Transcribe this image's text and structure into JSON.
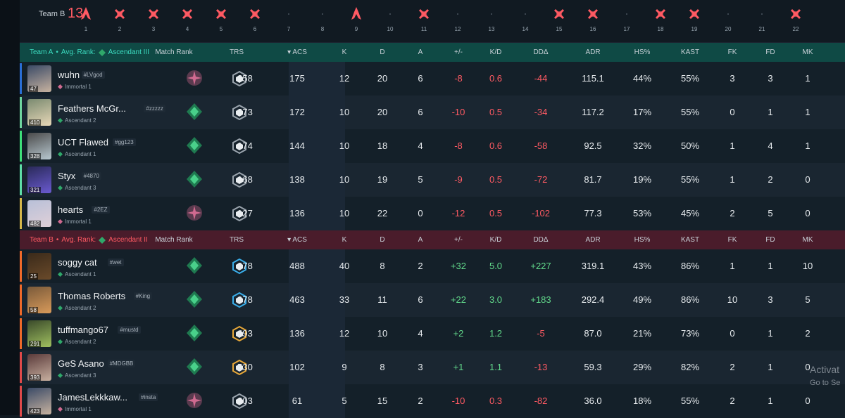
{
  "timeline": {
    "team_label": "Team B",
    "score": "13",
    "rounds": [
      {
        "n": "1",
        "icon": "spike"
      },
      {
        "n": "2",
        "icon": "x"
      },
      {
        "n": "3",
        "icon": "x"
      },
      {
        "n": "4",
        "icon": "x"
      },
      {
        "n": "5",
        "icon": "x"
      },
      {
        "n": "6",
        "icon": "x"
      },
      {
        "n": "7",
        "icon": "none"
      },
      {
        "n": "8",
        "icon": "none"
      },
      {
        "n": "9",
        "icon": "spike"
      },
      {
        "n": "10",
        "icon": "none"
      },
      {
        "n": "11",
        "icon": "x"
      },
      {
        "n": "12",
        "icon": "none"
      },
      {
        "n": "13",
        "icon": "none"
      },
      {
        "n": "14",
        "icon": "none"
      },
      {
        "n": "15",
        "icon": "x"
      },
      {
        "n": "16",
        "icon": "x"
      },
      {
        "n": "17",
        "icon": "none"
      },
      {
        "n": "18",
        "icon": "x"
      },
      {
        "n": "19",
        "icon": "x"
      },
      {
        "n": "20",
        "icon": "none"
      },
      {
        "n": "21",
        "icon": "none"
      },
      {
        "n": "22",
        "icon": "x"
      }
    ]
  },
  "columns": {
    "match_rank": "Match Rank",
    "trs": "TRS",
    "acs": "ACS",
    "k": "K",
    "d": "D",
    "a": "A",
    "pm": "+/-",
    "kd": "K/D",
    "dd": "DDΔ",
    "adr": "ADR",
    "hs": "HS%",
    "kast": "KAST",
    "fk": "FK",
    "fd": "FD",
    "mk": "MK"
  },
  "teamA": {
    "label": "Team A",
    "avg_rank_label": "Avg. Rank:",
    "avg_rank": "Ascendant III",
    "players": [
      {
        "name": "wuhn",
        "tag": "#LVgod",
        "rank": "Immortal 1",
        "level": "47",
        "trs": "258",
        "acs": "175",
        "k": "12",
        "d": "20",
        "a": "6",
        "pm": "-8",
        "kd": "0.6",
        "dd": "-44",
        "adr": "115.1",
        "hs": "44%",
        "kast": "55%",
        "fk": "3",
        "fd": "3",
        "mk": "1"
      },
      {
        "name": "Feathers McGr...",
        "tag": "#zzzzz",
        "rank": "Ascendant 2",
        "level": "410",
        "trs": "273",
        "acs": "172",
        "k": "10",
        "d": "20",
        "a": "6",
        "pm": "-10",
        "kd": "0.5",
        "dd": "-34",
        "adr": "117.2",
        "hs": "17%",
        "kast": "55%",
        "fk": "0",
        "fd": "1",
        "mk": "1"
      },
      {
        "name": "UCT Flawed",
        "tag": "#gg123",
        "rank": "Ascendant 1",
        "level": "328",
        "trs": "174",
        "acs": "144",
        "k": "10",
        "d": "18",
        "a": "4",
        "pm": "-8",
        "kd": "0.6",
        "dd": "-58",
        "adr": "92.5",
        "hs": "32%",
        "kast": "50%",
        "fk": "1",
        "fd": "4",
        "mk": "1"
      },
      {
        "name": "Styx",
        "tag": "#4870",
        "rank": "Ascendant 3",
        "level": "321",
        "trs": "168",
        "acs": "138",
        "k": "10",
        "d": "19",
        "a": "5",
        "pm": "-9",
        "kd": "0.5",
        "dd": "-72",
        "adr": "81.7",
        "hs": "19%",
        "kast": "55%",
        "fk": "1",
        "fd": "2",
        "mk": "0"
      },
      {
        "name": "hearts",
        "tag": "#2EZ",
        "rank": "Immortal 1",
        "level": "482",
        "trs": "127",
        "acs": "136",
        "k": "10",
        "d": "22",
        "a": "0",
        "pm": "-12",
        "kd": "0.5",
        "dd": "-102",
        "adr": "77.3",
        "hs": "53%",
        "kast": "45%",
        "fk": "2",
        "fd": "5",
        "mk": "0"
      }
    ]
  },
  "teamB": {
    "label": "Team B",
    "avg_rank_label": "Avg. Rank:",
    "avg_rank": "Ascendant II",
    "players": [
      {
        "name": "soggy cat",
        "tag": "#wet",
        "rank": "Ascendant 1",
        "level": "25",
        "trs": "978",
        "acs": "488",
        "k": "40",
        "d": "8",
        "a": "2",
        "pm": "+32",
        "kd": "5.0",
        "dd": "+227",
        "adr": "319.1",
        "hs": "43%",
        "kast": "86%",
        "fk": "1",
        "fd": "1",
        "mk": "10"
      },
      {
        "name": "Thomas Roberts",
        "tag": "#King",
        "rank": "Ascendant 2",
        "level": "58",
        "trs": "978",
        "acs": "463",
        "k": "33",
        "d": "11",
        "a": "6",
        "pm": "+22",
        "kd": "3.0",
        "dd": "+183",
        "adr": "292.4",
        "hs": "49%",
        "kast": "86%",
        "fk": "10",
        "fd": "3",
        "mk": "5"
      },
      {
        "name": "tuffmango67",
        "tag": "#mustd",
        "rank": "Ascendant 2",
        "level": "291",
        "trs": "493",
        "acs": "136",
        "k": "12",
        "d": "10",
        "a": "4",
        "pm": "+2",
        "kd": "1.2",
        "dd": "-5",
        "adr": "87.0",
        "hs": "21%",
        "kast": "73%",
        "fk": "0",
        "fd": "1",
        "mk": "2"
      },
      {
        "name": "GeS Asano",
        "tag": "#MDGBB",
        "rank": "Ascendant 3",
        "level": "393",
        "trs": "530",
        "acs": "102",
        "k": "9",
        "d": "8",
        "a": "3",
        "pm": "+1",
        "kd": "1.1",
        "dd": "-13",
        "adr": "59.3",
        "hs": "29%",
        "kast": "82%",
        "fk": "2",
        "fd": "1",
        "mk": "0"
      },
      {
        "name": "JamesLekkkaw...",
        "tag": "#insta",
        "rank": "Immortal 1",
        "level": "423",
        "trs": "203",
        "acs": "61",
        "k": "5",
        "d": "15",
        "a": "2",
        "pm": "-10",
        "kd": "0.3",
        "dd": "-82",
        "adr": "36.0",
        "hs": "18%",
        "kast": "55%",
        "fk": "2",
        "fd": "1",
        "mk": "0"
      }
    ]
  },
  "windows_watermark": {
    "line1": "Activat",
    "line2": "Go to Se"
  },
  "colors": {
    "teamA": "#0f4a45",
    "teamB": "#4a1c2b",
    "red": "#ff5a63",
    "green": "#62d98b",
    "teal": "#3cdcc0"
  }
}
